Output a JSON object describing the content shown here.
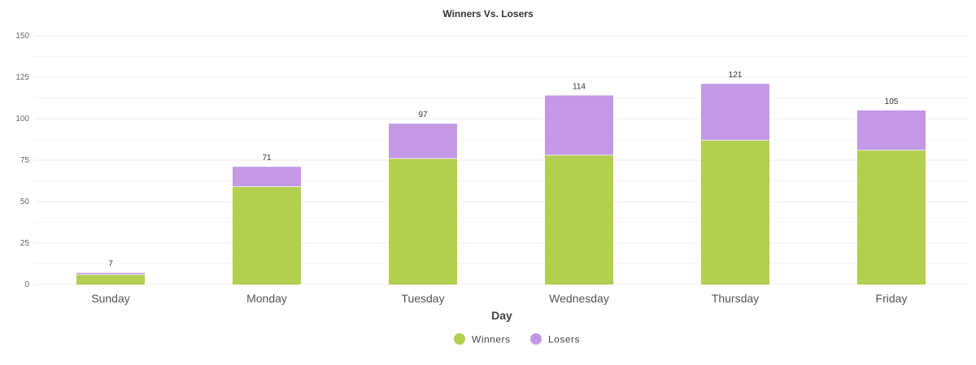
{
  "chart_data": {
    "type": "bar",
    "stacked": true,
    "title": "Winners Vs. Losers",
    "xlabel": "Day",
    "ylabel": "",
    "ylim": [
      0,
      150
    ],
    "yticks": [
      0,
      25,
      50,
      75,
      100,
      125,
      150
    ],
    "grid": true,
    "legend_position": "bottom-center",
    "categories": [
      "Sunday",
      "Monday",
      "Tuesday",
      "Wednesday",
      "Thursday",
      "Friday"
    ],
    "series": [
      {
        "name": "Winners",
        "color": "#b2cf4e",
        "values": [
          6,
          59,
          76,
          78,
          87,
          81
        ]
      },
      {
        "name": "Losers",
        "color": "#c399e5",
        "values": [
          1,
          12,
          21,
          36,
          34,
          24
        ]
      }
    ],
    "totals": [
      7,
      71,
      97,
      114,
      121,
      105
    ]
  }
}
